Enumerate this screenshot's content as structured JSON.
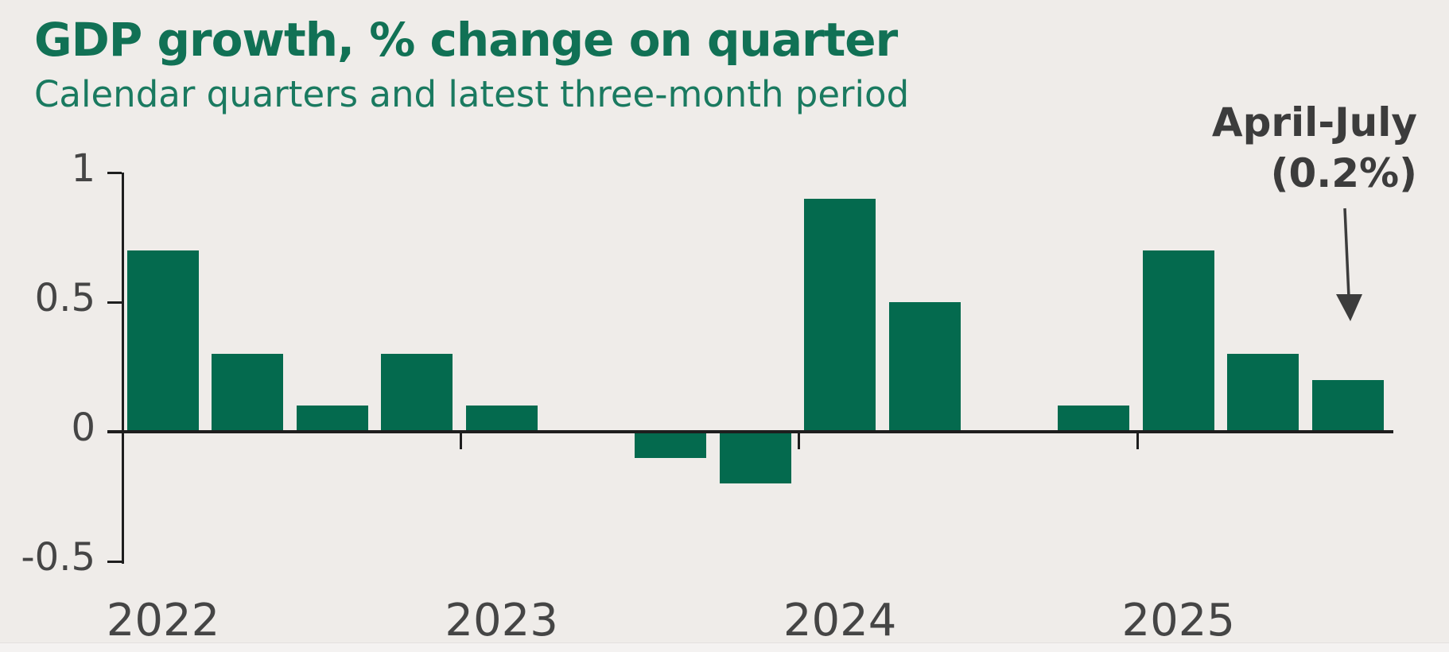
{
  "title": "GDP growth, % change on quarter",
  "subtitle": "Calendar quarters and latest three-month period",
  "annotation": {
    "line1": "April-July",
    "line2": "(0.2%)"
  },
  "colors": {
    "background": "#EFECE9",
    "bar_green": "#046A4E",
    "title_green": "#117155",
    "subtitle_green": "#1A7A60",
    "axis": "#1E1E1E",
    "tick_label_grey": "#454545",
    "annotation_grey": "#3C3C3C"
  },
  "chart_data": {
    "type": "bar",
    "title": "GDP growth, % change on quarter",
    "subtitle": "Calendar quarters and latest three-month period",
    "ylabel": "",
    "xlabel": "",
    "ylim": [
      -0.5,
      1
    ],
    "grid": false,
    "legend": "none",
    "yticks": [
      {
        "value": 1,
        "label": "1"
      },
      {
        "value": 0.5,
        "label": "0.5"
      },
      {
        "value": 0,
        "label": "0"
      },
      {
        "value": -0.5,
        "label": "-0.5"
      }
    ],
    "x_groups": [
      {
        "label": "2022",
        "start_slot": 0,
        "boundary_tick": false
      },
      {
        "label": "2023",
        "start_slot": 4,
        "boundary_tick": true
      },
      {
        "label": "2024",
        "start_slot": 8,
        "boundary_tick": true
      },
      {
        "label": "2025",
        "start_slot": 12,
        "boundary_tick": true
      }
    ],
    "points": [
      {
        "period": "2022-q1",
        "slot": 0,
        "value": 0.7
      },
      {
        "period": "2022-q2",
        "slot": 1,
        "value": 0.3
      },
      {
        "period": "2022-q3",
        "slot": 2,
        "value": 0.1
      },
      {
        "period": "2022-q4",
        "slot": 3,
        "value": 0.3
      },
      {
        "period": "2023-q1",
        "slot": 4,
        "value": 0.1
      },
      {
        "period": "2023-q2",
        "slot": 5,
        "value": 0.0
      },
      {
        "period": "2023-q3",
        "slot": 6,
        "value": -0.1
      },
      {
        "period": "2023-q4",
        "slot": 7,
        "value": -0.2
      },
      {
        "period": "2024-q1",
        "slot": 8,
        "value": 0.9
      },
      {
        "period": "2024-q2",
        "slot": 9,
        "value": 0.5
      },
      {
        "period": "2024-q3",
        "slot": 10,
        "value": 0.0
      },
      {
        "period": "2024-q4",
        "slot": 11,
        "value": 0.1
      },
      {
        "period": "2025-q1",
        "slot": 12,
        "value": 0.7
      },
      {
        "period": "2025-q2",
        "slot": 13,
        "value": 0.3
      },
      {
        "period": "april-july-latest",
        "slot": 14,
        "value": 0.2
      }
    ],
    "annotation": {
      "text": "April-July (0.2%)",
      "points_to": "april-july-latest"
    }
  }
}
